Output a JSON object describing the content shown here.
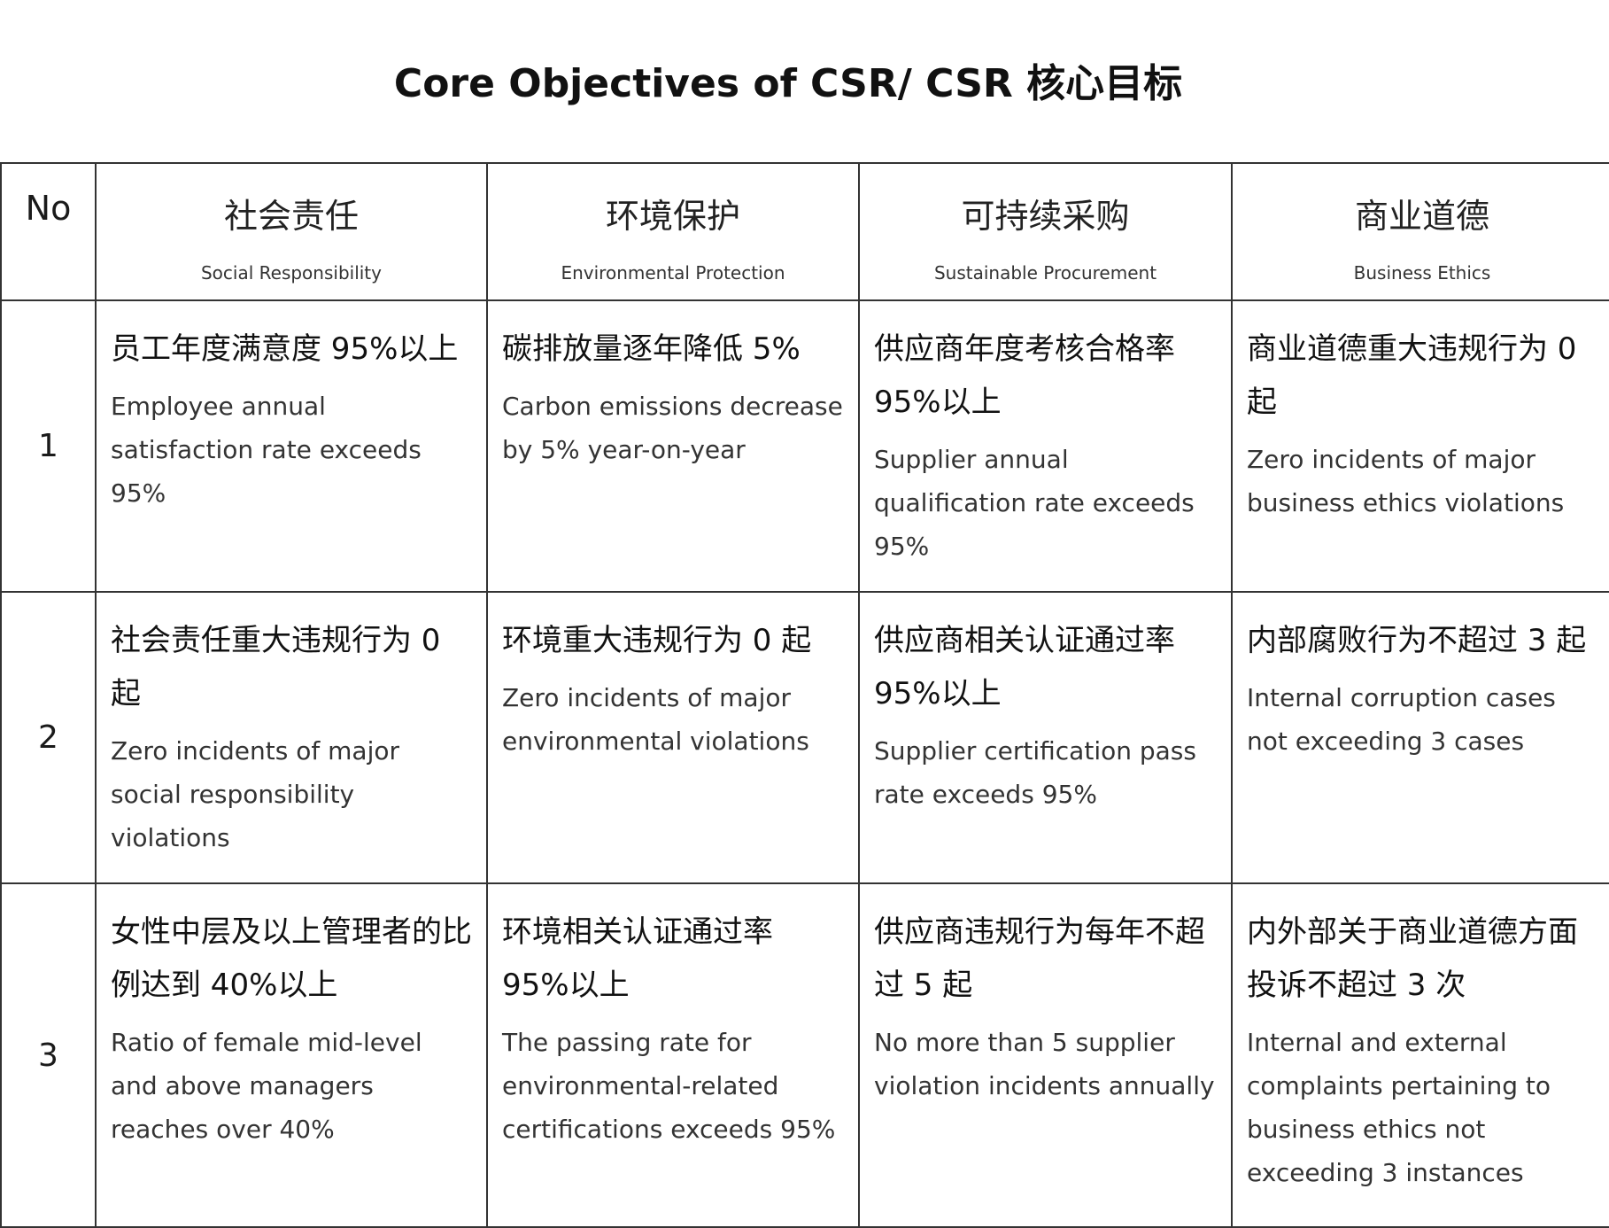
{
  "title": "Core Objectives of CSR/ CSR 核心目标",
  "headers": {
    "no": "No",
    "columns": [
      {
        "zh": "社会责任",
        "en": "Social Responsibility"
      },
      {
        "zh": "环境保护",
        "en": "Environmental Protection"
      },
      {
        "zh": "可持续采购",
        "en": "Sustainable Procurement"
      },
      {
        "zh": "商业道德",
        "en": "Business Ethics"
      }
    ]
  },
  "rows": [
    {
      "no": "1",
      "cells": [
        {
          "zh": "员工年度满意度 95%以上",
          "en": "Employee annual satisfaction rate exceeds 95%"
        },
        {
          "zh": "碳排放量逐年降低 5%",
          "en": "Carbon emissions decrease by 5% year-on-year"
        },
        {
          "zh": "供应商年度考核合格率 95%以上",
          "en": "Supplier annual qualification rate exceeds 95%"
        },
        {
          "zh": "商业道德重大违规行为 0 起",
          "en": "Zero incidents of major business ethics violations"
        }
      ]
    },
    {
      "no": "2",
      "cells": [
        {
          "zh": "社会责任重大违规行为 0 起",
          "en": "Zero incidents of major social responsibility violations"
        },
        {
          "zh": "环境重大违规行为 0 起",
          "en": "Zero incidents of major environmental violations"
        },
        {
          "zh": "供应商相关认证通过率 95%以上",
          "en": "Supplier certification pass rate exceeds 95%"
        },
        {
          "zh": "内部腐败行为不超过 3 起",
          "en": "Internal corruption cases not exceeding 3 cases"
        }
      ]
    },
    {
      "no": "3",
      "cells": [
        {
          "zh": "女性中层及以上管理者的比例达到 40%以上",
          "en": "Ratio of female mid-level and above managers reaches over 40%"
        },
        {
          "zh": "环境相关认证通过率 95%以上",
          "en": "The passing rate for environmental-related certifications exceeds 95%"
        },
        {
          "zh": "供应商违规行为每年不超过 5 起",
          "en": "No more than 5 supplier violation incidents annually"
        },
        {
          "zh": "内外部关于商业道德方面投诉不超过 3 次",
          "en": "Internal and external complaints pertaining to business ethics not exceeding 3 instances"
        }
      ]
    }
  ]
}
